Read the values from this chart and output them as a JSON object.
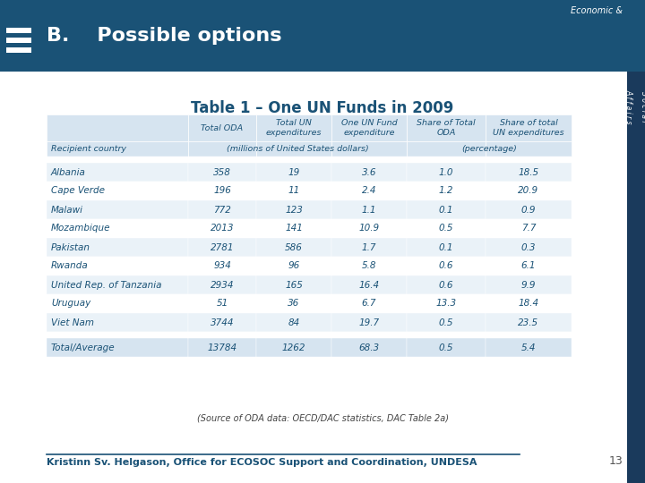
{
  "title": "B.    Possible options",
  "table_title": "Table 1 – One UN Funds in 2009",
  "rows": [
    [
      "Albania",
      "358",
      "19",
      "3.6",
      "1.0",
      "18.5"
    ],
    [
      "Cape Verde",
      "196",
      "11",
      "2.4",
      "1.2",
      "20.9"
    ],
    [
      "Malawi",
      "772",
      "123",
      "1.1",
      "0.1",
      "0.9"
    ],
    [
      "Mozambique",
      "2013",
      "141",
      "10.9",
      "0.5",
      "7.7"
    ],
    [
      "Pakistan",
      "2781",
      "586",
      "1.7",
      "0.1",
      "0.3"
    ],
    [
      "Rwanda",
      "934",
      "96",
      "5.8",
      "0.6",
      "6.1"
    ],
    [
      "United Rep. of Tanzania",
      "2934",
      "165",
      "16.4",
      "0.6",
      "9.9"
    ],
    [
      "Uruguay",
      "51",
      "36",
      "6.7",
      "13.3",
      "18.4"
    ],
    [
      "Viet Nam",
      "3744",
      "84",
      "19.7",
      "0.5",
      "23.5"
    ]
  ],
  "total_row": [
    "Total/Average",
    "13784",
    "1262",
    "68.3",
    "0.5",
    "5.4"
  ],
  "source": "(Source of ODA data: OECD/DAC statistics, DAC Table 2a)",
  "footer": "Kristinn Sv. Helgason, Office for ECOSOC Support and Coordination, UNDESA",
  "page_number": "13",
  "header_bg": "#1a5276",
  "table_header_bg": "#d6e4f0",
  "row_odd_bg": "#eaf2f8",
  "row_even_bg": "#FFFFFF",
  "total_row_bg": "#d6e4f0",
  "text_color": "#1a5276",
  "right_bar_color": "#1a3a5c",
  "economic_text": "Economic &",
  "social_text": "S o c i a l\nA f f a i r s"
}
